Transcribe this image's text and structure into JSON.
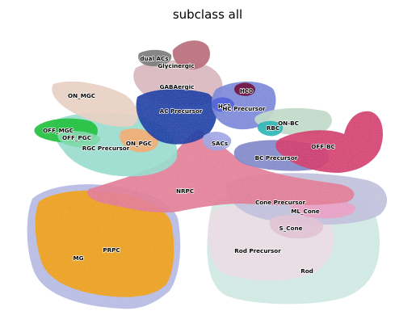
{
  "chart_data": {
    "type": "scatter",
    "title": "subclass all",
    "xlabel": "",
    "ylabel": "",
    "axes_visible": false,
    "grid": false,
    "legend": "on data",
    "clusters": [
      {
        "name": "dual ACs",
        "color": "#7a7a7a"
      },
      {
        "name": "Glycinergic",
        "color": "#b86a78"
      },
      {
        "name": "GABAergic",
        "color": "#d7b6bd"
      },
      {
        "name": "AC Precursor",
        "color": "#1f3fa5"
      },
      {
        "name": "HC0",
        "color": "#6e0f3a"
      },
      {
        "name": "HC1",
        "color": "#4f5fd8"
      },
      {
        "name": "HC Precursor",
        "color": "#7b86d8"
      },
      {
        "name": "ON_MGC",
        "color": "#e7cfc2"
      },
      {
        "name": "OFF_MGC",
        "color": "#1fbf3b"
      },
      {
        "name": "OFF_PGC",
        "color": "#7ed8a8"
      },
      {
        "name": "RGC Precursor",
        "color": "#98dccd"
      },
      {
        "name": "ON_PGC",
        "color": "#f2ab72"
      },
      {
        "name": "SACs",
        "color": "#9fa6e3"
      },
      {
        "name": "ON-BC",
        "color": "#bfd9c8"
      },
      {
        "name": "RBC",
        "color": "#2bb5b5"
      },
      {
        "name": "OFF-BC",
        "color": "#d23f6e"
      },
      {
        "name": "BC Precursor",
        "color": "#7f86c8"
      },
      {
        "name": "NRPC",
        "color": "#e27d97"
      },
      {
        "name": "Cone Precursor",
        "color": "#c1bfdb"
      },
      {
        "name": "ML_Cone",
        "color": "#e9a0c4"
      },
      {
        "name": "S_Cone",
        "color": "#e0c2d4"
      },
      {
        "name": "PRPC",
        "color": "#f0a01a"
      },
      {
        "name": "MG",
        "color": "#b5b9e2"
      },
      {
        "name": "Rod Precursor",
        "color": "#eadbe3"
      },
      {
        "name": "Rod",
        "color": "#cfe7e2"
      }
    ]
  }
}
